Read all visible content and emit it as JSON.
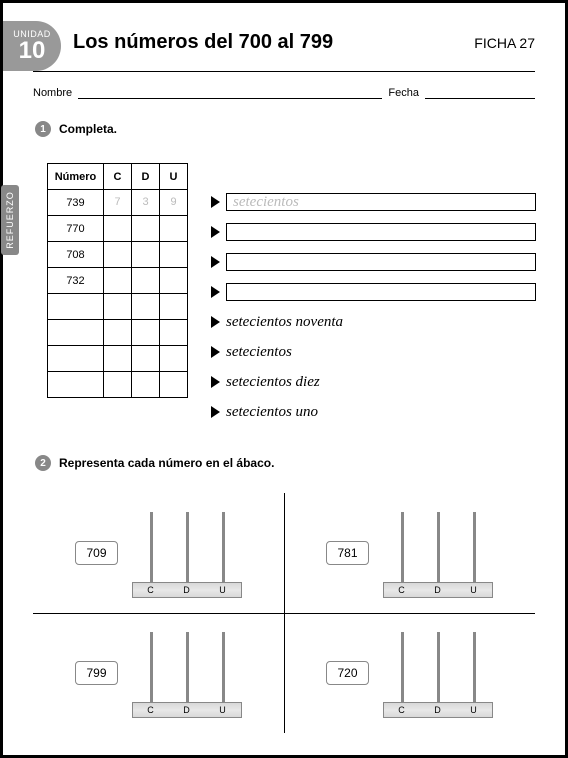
{
  "unit": {
    "label": "UNIDAD",
    "number": "10"
  },
  "title": "Los números del 700 al 799",
  "ficha": "FICHA 27",
  "name_label": "Nombre",
  "date_label": "Fecha",
  "side_tab": "REFUERZO",
  "ex1": {
    "bullet": "1",
    "text": "Completa."
  },
  "ex2": {
    "bullet": "2",
    "text": "Representa cada número en el ábaco."
  },
  "table": {
    "headers": [
      "Número",
      "C",
      "D",
      "U"
    ],
    "rows": [
      {
        "n": "739",
        "c": "7",
        "d": "3",
        "u": "9"
      },
      {
        "n": "770",
        "c": "",
        "d": "",
        "u": ""
      },
      {
        "n": "708",
        "c": "",
        "d": "",
        "u": ""
      },
      {
        "n": "732",
        "c": "",
        "d": "",
        "u": ""
      },
      {
        "n": "",
        "c": "",
        "d": "",
        "u": ""
      },
      {
        "n": "",
        "c": "",
        "d": "",
        "u": ""
      },
      {
        "n": "",
        "c": "",
        "d": "",
        "u": ""
      },
      {
        "n": "",
        "c": "",
        "d": "",
        "u": ""
      }
    ]
  },
  "words": [
    {
      "text": "setecientos",
      "boxed": true,
      "faded": true
    },
    {
      "text": "",
      "boxed": true,
      "faded": false
    },
    {
      "text": "",
      "boxed": true,
      "faded": false
    },
    {
      "text": "",
      "boxed": true,
      "faded": false
    },
    {
      "text": "setecientos noventa",
      "boxed": false
    },
    {
      "text": "setecientos",
      "boxed": false
    },
    {
      "text": "setecientos diez",
      "boxed": false
    },
    {
      "text": "setecientos uno",
      "boxed": false
    }
  ],
  "abacus": {
    "column_labels": [
      "C",
      "D",
      "U"
    ],
    "items": [
      "709",
      "781",
      "799",
      "720"
    ]
  },
  "colors": {
    "badge": "#999999",
    "side": "#888888",
    "faded_text": "#bbbbbb",
    "border": "#000000"
  }
}
